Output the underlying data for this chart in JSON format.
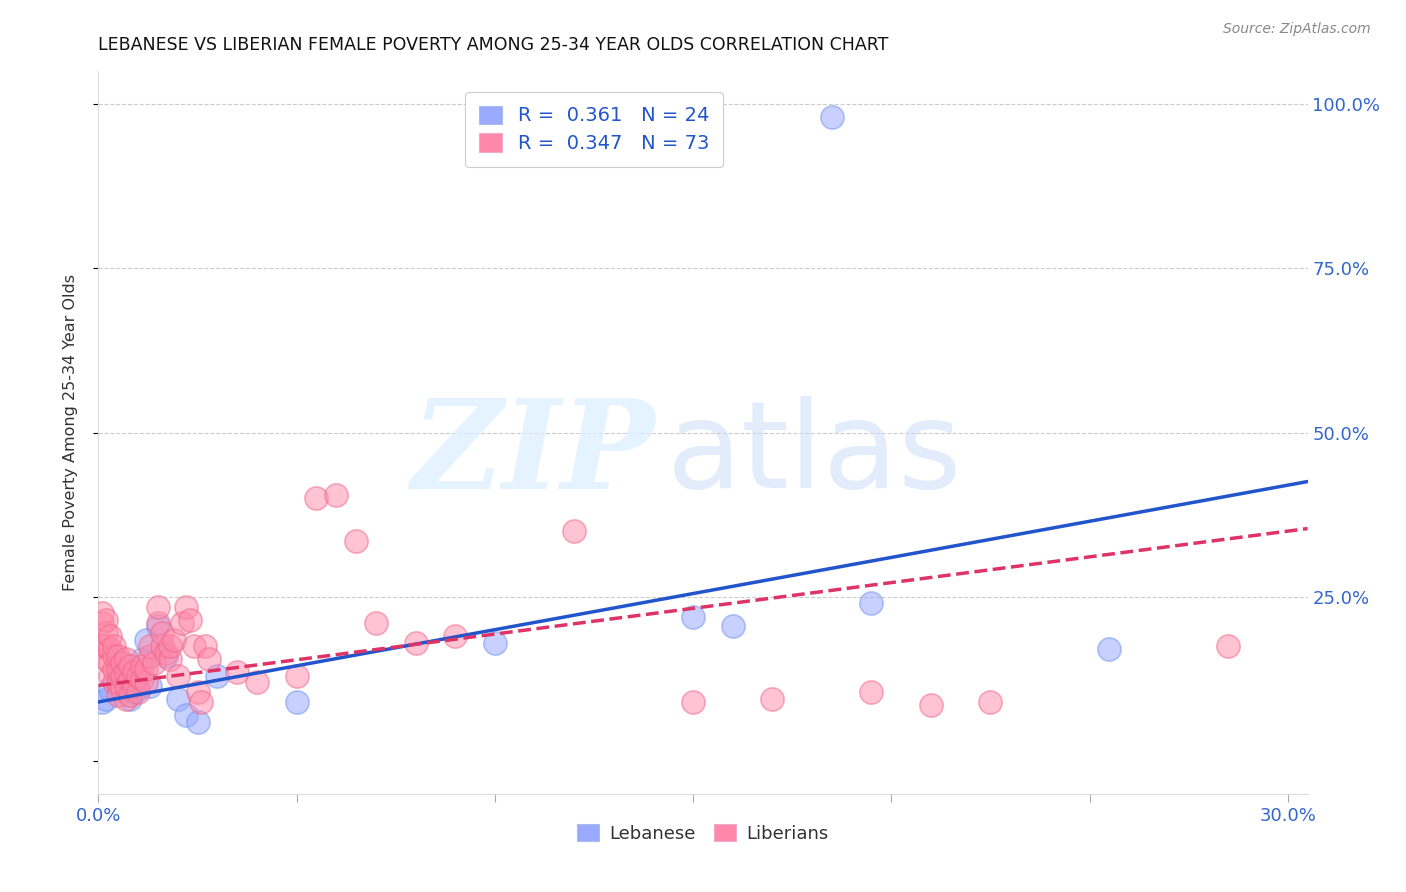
{
  "title": "LEBANESE VS LIBERIAN FEMALE POVERTY AMONG 25-34 YEAR OLDS CORRELATION CHART",
  "source": "Source: ZipAtlas.com",
  "ylabel": "Female Poverty Among 25-34 Year Olds",
  "xlim": [
    0.0,
    0.305
  ],
  "ylim": [
    -0.05,
    1.05
  ],
  "lebanese_color": "#99aaff",
  "liberian_color": "#ff88aa",
  "lebanese_scatter_edge": "#7799ee",
  "liberian_scatter_edge": "#ee6688",
  "lebanese_line_color": "#2255cc",
  "liberian_line_color": "#dd3366",
  "axis_tick_color": "#3366cc",
  "legend_R_lebanese": "0.361",
  "legend_N_lebanese": "24",
  "legend_R_liberian": "0.347",
  "legend_N_liberian": "73",
  "legend_text_color": "#333333",
  "legend_value_color": "#2255cc",
  "source_color": "#888888",
  "grid_color": "#cccccc",
  "lebanese_x": [
    0.001,
    0.002,
    0.003,
    0.005,
    0.007,
    0.008,
    0.009,
    0.01,
    0.011,
    0.012,
    0.013,
    0.015,
    0.017,
    0.02,
    0.022,
    0.025,
    0.03,
    0.05,
    0.1,
    0.15,
    0.16,
    0.195,
    0.255,
    0.185
  ],
  "lebanese_y": [
    0.09,
    0.095,
    0.11,
    0.12,
    0.13,
    0.095,
    0.105,
    0.11,
    0.155,
    0.185,
    0.115,
    0.205,
    0.16,
    0.095,
    0.07,
    0.06,
    0.13,
    0.09,
    0.18,
    0.22,
    0.205,
    0.24,
    0.17,
    0.98
  ],
  "liberian_x": [
    0.001,
    0.001,
    0.001,
    0.002,
    0.002,
    0.002,
    0.002,
    0.003,
    0.003,
    0.003,
    0.003,
    0.004,
    0.004,
    0.004,
    0.004,
    0.005,
    0.005,
    0.005,
    0.005,
    0.006,
    0.006,
    0.006,
    0.007,
    0.007,
    0.007,
    0.007,
    0.008,
    0.008,
    0.008,
    0.009,
    0.009,
    0.01,
    0.01,
    0.011,
    0.011,
    0.012,
    0.012,
    0.013,
    0.013,
    0.014,
    0.015,
    0.015,
    0.016,
    0.016,
    0.017,
    0.018,
    0.018,
    0.019,
    0.02,
    0.021,
    0.022,
    0.023,
    0.024,
    0.025,
    0.026,
    0.027,
    0.028,
    0.035,
    0.04,
    0.05,
    0.055,
    0.06,
    0.065,
    0.07,
    0.08,
    0.09,
    0.12,
    0.15,
    0.17,
    0.195,
    0.21,
    0.225,
    0.285
  ],
  "liberian_y": [
    0.175,
    0.21,
    0.225,
    0.155,
    0.175,
    0.195,
    0.215,
    0.13,
    0.15,
    0.17,
    0.19,
    0.12,
    0.14,
    0.16,
    0.175,
    0.1,
    0.12,
    0.14,
    0.16,
    0.11,
    0.13,
    0.15,
    0.095,
    0.115,
    0.135,
    0.155,
    0.1,
    0.125,
    0.145,
    0.115,
    0.135,
    0.105,
    0.13,
    0.125,
    0.145,
    0.12,
    0.14,
    0.16,
    0.175,
    0.15,
    0.21,
    0.235,
    0.175,
    0.195,
    0.165,
    0.155,
    0.175,
    0.185,
    0.13,
    0.21,
    0.235,
    0.215,
    0.175,
    0.105,
    0.09,
    0.175,
    0.155,
    0.135,
    0.12,
    0.13,
    0.4,
    0.405,
    0.335,
    0.21,
    0.18,
    0.19,
    0.35,
    0.09,
    0.095,
    0.105,
    0.085,
    0.09,
    0.175
  ]
}
